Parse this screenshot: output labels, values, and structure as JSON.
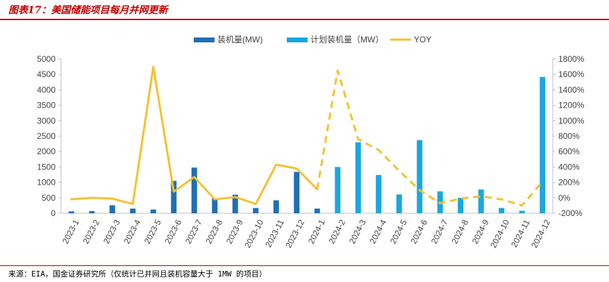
{
  "header": {
    "title": "图表17：美国储能项目每月并网更新",
    "source": "来源：EIA，国金证券研究所（仅统计已并网且装机容量大于 1MW 的项目）"
  },
  "chart_data": {
    "type": "bar",
    "title": "",
    "categories": [
      "2023-1",
      "2023-2",
      "2023-3",
      "2023-4",
      "2023-5",
      "2023-6",
      "2023-7",
      "2023-8",
      "2023-9",
      "2023-10",
      "2023-11",
      "2023-12",
      "2024-1",
      "2024-2",
      "2024-3",
      "2024-4",
      "2024-5",
      "2024-6",
      "2024-7",
      "2024-8",
      "2024-9",
      "2024-10",
      "2024-11",
      "2024-12"
    ],
    "series": [
      {
        "name": "装机量(MW)",
        "type": "bar",
        "color": "#1f6fb5",
        "axis": "left",
        "values": [
          60,
          70,
          260,
          150,
          120,
          1050,
          1480,
          480,
          600,
          170,
          420,
          1340,
          150,
          null,
          null,
          null,
          null,
          null,
          null,
          null,
          null,
          null,
          null,
          null
        ]
      },
      {
        "name": "计划装机量（MW）",
        "type": "bar",
        "color": "#1aa7e0",
        "axis": "left",
        "values": [
          null,
          null,
          null,
          null,
          null,
          null,
          null,
          null,
          null,
          null,
          null,
          null,
          null,
          1500,
          2300,
          1240,
          610,
          2370,
          710,
          500,
          770,
          170,
          80,
          4420
        ]
      },
      {
        "name": "YOY",
        "type": "line",
        "color": "#f5c12e",
        "axis": "right",
        "values": [
          -20,
          0,
          -10,
          -80,
          1700,
          80,
          270,
          -20,
          10,
          -80,
          430,
          380,
          110,
          1650,
          760,
          620,
          350,
          100,
          -70,
          -10,
          20,
          -20,
          -100,
          210
        ],
        "dashed_from_index": 12
      }
    ],
    "y_left": {
      "min": 0,
      "max": 5000,
      "step": 500,
      "ticks": [
        "0",
        "500",
        "1000",
        "1500",
        "2000",
        "2500",
        "3000",
        "3500",
        "4000",
        "4500",
        "5000"
      ]
    },
    "y_right": {
      "min": -200,
      "max": 1800,
      "step": 200,
      "ticks": [
        "-200%",
        "0%",
        "200%",
        "400%",
        "600%",
        "800%",
        "1000%",
        "1200%",
        "1400%",
        "1600%",
        "1800%"
      ]
    },
    "legend": {
      "position": "top",
      "entries": [
        "装机量(MW)",
        "计划装机量（MW）",
        "YOY"
      ]
    },
    "grid": false
  }
}
